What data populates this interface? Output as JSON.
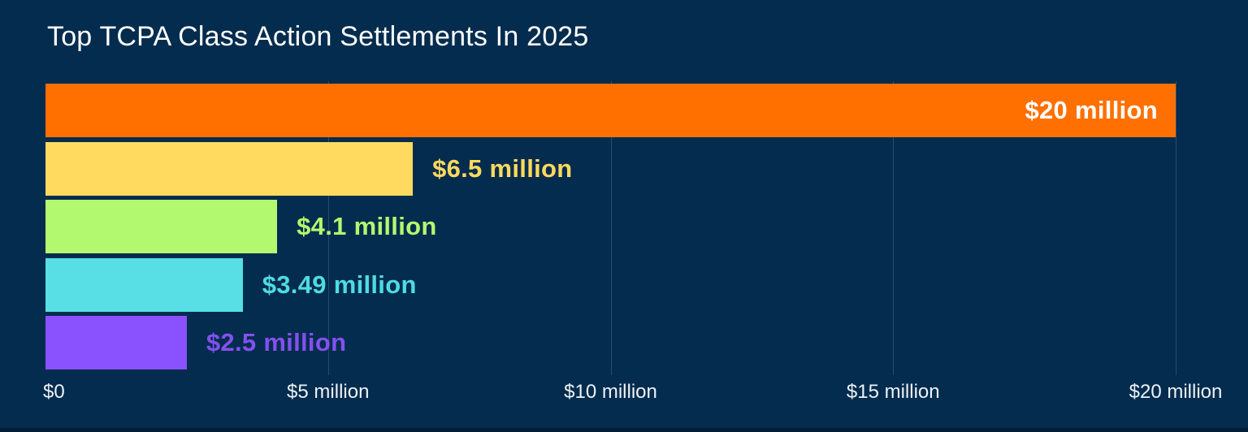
{
  "theme": {
    "background": "#042C4E",
    "bottom_edge": "#021E36",
    "title_color": "#FFFFFF",
    "axis_label_color": "#EDF2F7",
    "gridline_color": "rgba(255,255,255,0.16)"
  },
  "chart_data": {
    "type": "bar",
    "orientation": "horizontal",
    "title": "Top TCPA Class Action Settlements In 2025",
    "xlabel": "",
    "ylabel": "",
    "xlim": [
      0,
      20
    ],
    "grid": "vertical-only",
    "legend": "none",
    "bars": [
      {
        "value": 20,
        "label": "$20 million",
        "color": "#FF7000",
        "label_color": "#FFFFFF",
        "label_inside": true
      },
      {
        "value": 6.5,
        "label": "$6.5 million",
        "color": "#FFDA5E",
        "label_color": "#FFD95E",
        "label_inside": false
      },
      {
        "value": 4.1,
        "label": "$4.1 million",
        "color": "#B2F96F",
        "label_color": "#B2F96F",
        "label_inside": false
      },
      {
        "value": 3.49,
        "label": "$3.49 million",
        "color": "#57DFE5",
        "label_color": "#4EDCE3",
        "label_inside": false
      },
      {
        "value": 2.5,
        "label": "$2.5 million",
        "color": "#8952FE",
        "label_color": "#8450F0",
        "label_inside": false
      }
    ],
    "x_ticks": [
      {
        "value": 0,
        "label": "$0"
      },
      {
        "value": 5,
        "label": "$5 million"
      },
      {
        "value": 10,
        "label": "$10 million"
      },
      {
        "value": 15,
        "label": "$15 million"
      },
      {
        "value": 20,
        "label": "$20 million"
      }
    ]
  }
}
